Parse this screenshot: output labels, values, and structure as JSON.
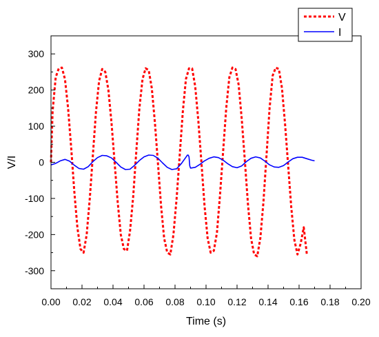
{
  "chart_data": {
    "type": "line",
    "title": "",
    "xlabel": "Time (s)",
    "ylabel": "V/I",
    "xlim": [
      0,
      0.2
    ],
    "ylim": [
      -350,
      350
    ],
    "xticks": [
      0,
      0.02,
      0.04,
      0.06,
      0.08,
      0.1,
      0.12,
      0.14,
      0.16,
      0.18,
      0.2
    ],
    "xtick_labels": [
      "0.00",
      "0.02",
      "0.04",
      "0.06",
      "0.08",
      "0.10",
      "0.12",
      "0.14",
      "0.16",
      "0.18",
      "0.20"
    ],
    "yticks": [
      300,
      200,
      100,
      0,
      -100,
      -200,
      -300
    ],
    "ytick_labels": [
      "300",
      "200",
      "100",
      "0",
      "-100",
      "-200",
      "-300"
    ],
    "grid": false,
    "legend_position": "top-right",
    "series": [
      {
        "name": "V",
        "color": "#ff0000",
        "style": "dashed",
        "x": [
          0.0,
          0.001,
          0.003,
          0.005,
          0.007,
          0.009,
          0.011,
          0.013,
          0.015,
          0.017,
          0.019,
          0.021,
          0.023,
          0.025,
          0.027,
          0.029,
          0.031,
          0.033,
          0.035,
          0.037,
          0.039,
          0.041,
          0.043,
          0.045,
          0.047,
          0.049,
          0.051,
          0.053,
          0.055,
          0.057,
          0.059,
          0.061,
          0.063,
          0.065,
          0.067,
          0.069,
          0.071,
          0.073,
          0.075,
          0.077,
          0.079,
          0.081,
          0.083,
          0.085,
          0.087,
          0.089,
          0.091,
          0.093,
          0.095,
          0.097,
          0.099,
          0.101,
          0.103,
          0.105,
          0.107,
          0.109,
          0.111,
          0.113,
          0.115,
          0.117,
          0.119,
          0.121,
          0.123,
          0.125,
          0.127,
          0.129,
          0.131,
          0.133,
          0.135,
          0.137,
          0.139,
          0.141,
          0.143,
          0.145,
          0.147,
          0.149,
          0.151,
          0.153,
          0.155,
          0.157,
          0.159,
          0.161,
          0.163,
          0.165
        ],
        "y": [
          0,
          140,
          235,
          260,
          262,
          230,
          150,
          40,
          -80,
          -180,
          -240,
          -250,
          -200,
          -100,
          20,
          140,
          225,
          258,
          250,
          200,
          110,
          0,
          -110,
          -200,
          -240,
          -245,
          -190,
          -95,
          30,
          150,
          230,
          260,
          255,
          205,
          110,
          -5,
          -120,
          -210,
          -250,
          -255,
          -200,
          -100,
          20,
          140,
          230,
          260,
          260,
          210,
          115,
          0,
          -120,
          -210,
          -250,
          -245,
          -195,
          -90,
          30,
          150,
          235,
          262,
          258,
          215,
          120,
          5,
          -115,
          -210,
          -255,
          -260,
          -210,
          -110,
          20,
          150,
          240,
          262,
          258,
          205,
          105,
          -10,
          -125,
          -215,
          -255,
          -225,
          -180,
          -255
        ]
      },
      {
        "name": "I",
        "color": "#0000ff",
        "style": "solid",
        "x": [
          0.0,
          0.003,
          0.006,
          0.009,
          0.012,
          0.015,
          0.018,
          0.021,
          0.024,
          0.027,
          0.03,
          0.033,
          0.036,
          0.039,
          0.042,
          0.045,
          0.048,
          0.051,
          0.054,
          0.057,
          0.06,
          0.063,
          0.066,
          0.069,
          0.072,
          0.075,
          0.078,
          0.081,
          0.084,
          0.087,
          0.088,
          0.0885,
          0.089,
          0.0895,
          0.09,
          0.093,
          0.096,
          0.099,
          0.102,
          0.105,
          0.108,
          0.111,
          0.114,
          0.117,
          0.12,
          0.123,
          0.126,
          0.129,
          0.132,
          0.135,
          0.138,
          0.141,
          0.144,
          0.147,
          0.15,
          0.153,
          0.156,
          0.159,
          0.162,
          0.165,
          0.168,
          0.17
        ],
        "y": [
          -7,
          -3,
          4,
          8,
          3,
          -8,
          -17,
          -19,
          -12,
          2,
          13,
          19,
          18,
          12,
          0,
          -13,
          -20,
          -19,
          -8,
          5,
          15,
          20,
          19,
          11,
          -2,
          -14,
          -20,
          -18,
          -4,
          14,
          20,
          20,
          15,
          -10,
          -16,
          -14,
          -6,
          4,
          11,
          15,
          13,
          6,
          -4,
          -12,
          -15,
          -10,
          2,
          11,
          15,
          12,
          3,
          -7,
          -13,
          -14,
          -9,
          1,
          10,
          14,
          14,
          10,
          6,
          4
        ]
      }
    ]
  }
}
